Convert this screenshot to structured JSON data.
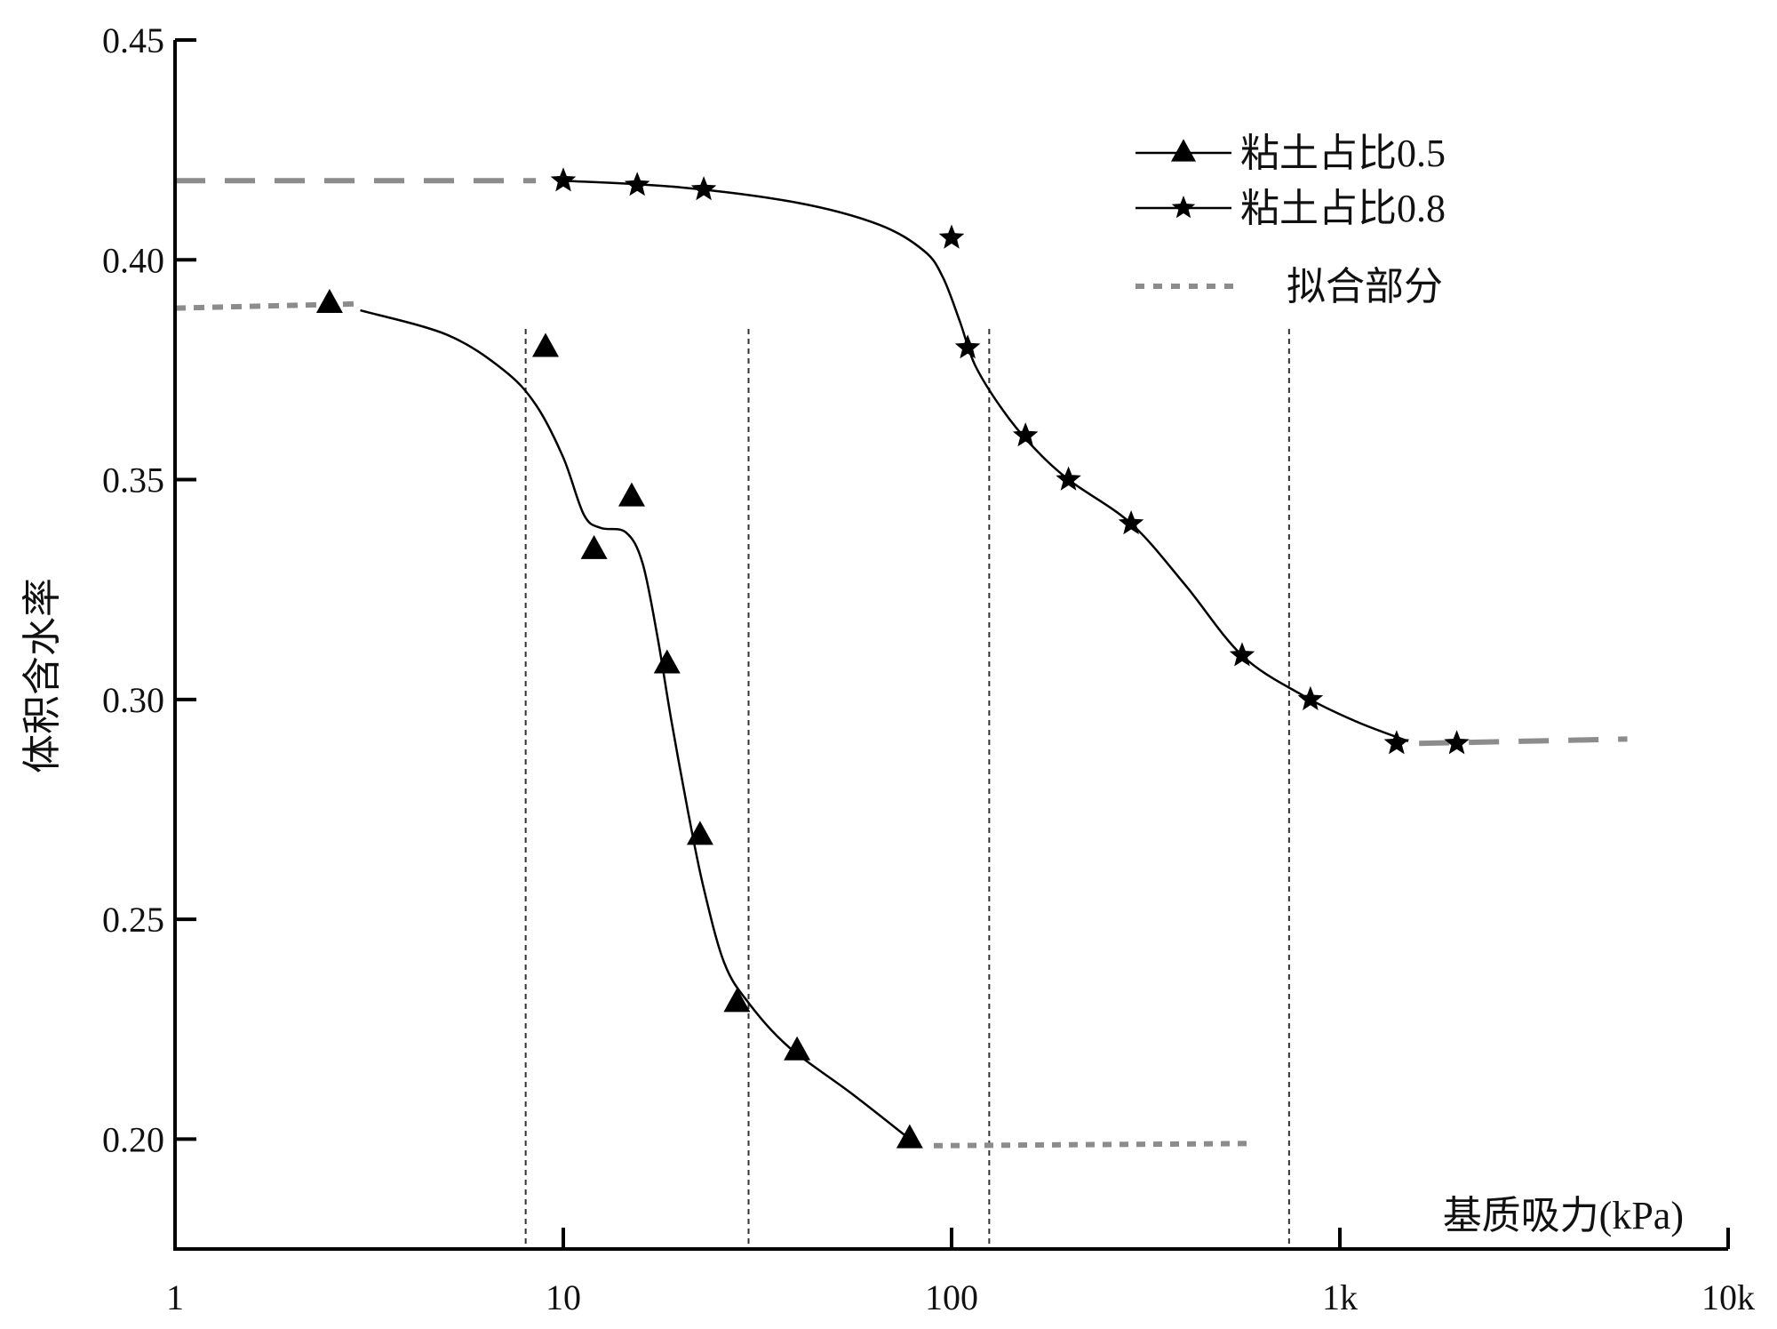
{
  "chart_data": {
    "type": "line",
    "xscale": "log",
    "xlim": [
      1,
      10000
    ],
    "ylim": [
      0.175,
      0.45
    ],
    "xlabel": "基质吸力(kPa)",
    "ylabel": "体积含水率",
    "x_ticks": [
      {
        "value": 1,
        "label": "1"
      },
      {
        "value": 10,
        "label": "10"
      },
      {
        "value": 100,
        "label": "100"
      },
      {
        "value": 1000,
        "label": "1k"
      },
      {
        "value": 10000,
        "label": "10k"
      }
    ],
    "y_ticks": [
      {
        "value": 0.2,
        "label": "0.20"
      },
      {
        "value": 0.25,
        "label": "0.25"
      },
      {
        "value": 0.3,
        "label": "0.30"
      },
      {
        "value": 0.35,
        "label": "0.35"
      },
      {
        "value": 0.4,
        "label": "0.40"
      },
      {
        "value": 0.45,
        "label": "0.45"
      }
    ],
    "series": [
      {
        "name": "粘土占比0.5",
        "marker": "triangle",
        "points": [
          {
            "x": 2.5,
            "y": 0.39
          },
          {
            "x": 9,
            "y": 0.38
          },
          {
            "x": 12,
            "y": 0.334
          },
          {
            "x": 15,
            "y": 0.346
          },
          {
            "x": 18.5,
            "y": 0.308
          },
          {
            "x": 22.5,
            "y": 0.269
          },
          {
            "x": 28,
            "y": 0.231
          },
          {
            "x": 40,
            "y": 0.22
          },
          {
            "x": 78,
            "y": 0.2
          }
        ],
        "fit_curve": [
          {
            "x": 3,
            "y": 0.3885
          },
          {
            "x": 5,
            "y": 0.383
          },
          {
            "x": 7,
            "y": 0.375
          },
          {
            "x": 8.5,
            "y": 0.367
          },
          {
            "x": 10,
            "y": 0.355
          },
          {
            "x": 11.3,
            "y": 0.342
          },
          {
            "x": 12.5,
            "y": 0.339
          },
          {
            "x": 14.5,
            "y": 0.338
          },
          {
            "x": 16,
            "y": 0.331
          },
          {
            "x": 17.5,
            "y": 0.314
          },
          {
            "x": 19,
            "y": 0.295
          },
          {
            "x": 21,
            "y": 0.274
          },
          {
            "x": 23,
            "y": 0.257
          },
          {
            "x": 26,
            "y": 0.24
          },
          {
            "x": 30,
            "y": 0.231
          },
          {
            "x": 38,
            "y": 0.221
          },
          {
            "x": 55,
            "y": 0.2105
          },
          {
            "x": 78,
            "y": 0.2
          }
        ],
        "extension_dashed": [
          {
            "x": 1,
            "y": 0.389
          },
          {
            "x": 3,
            "y": 0.39
          }
        ],
        "extension_dotted": [
          {
            "x": 90,
            "y": 0.1985
          },
          {
            "x": 600,
            "y": 0.199
          }
        ]
      },
      {
        "name": "粘土占比0.8",
        "marker": "star",
        "points": [
          {
            "x": 10,
            "y": 0.418
          },
          {
            "x": 15.5,
            "y": 0.417
          },
          {
            "x": 23,
            "y": 0.416
          },
          {
            "x": 100,
            "y": 0.405
          },
          {
            "x": 110,
            "y": 0.38
          },
          {
            "x": 155,
            "y": 0.36
          },
          {
            "x": 200,
            "y": 0.35
          },
          {
            "x": 290,
            "y": 0.34
          },
          {
            "x": 560,
            "y": 0.31
          },
          {
            "x": 840,
            "y": 0.3
          },
          {
            "x": 1400,
            "y": 0.29
          },
          {
            "x": 2000,
            "y": 0.29
          }
        ],
        "fit_curve": [
          {
            "x": 10,
            "y": 0.418
          },
          {
            "x": 20,
            "y": 0.4165
          },
          {
            "x": 40,
            "y": 0.413
          },
          {
            "x": 65,
            "y": 0.408
          },
          {
            "x": 85,
            "y": 0.402
          },
          {
            "x": 95,
            "y": 0.396
          },
          {
            "x": 105,
            "y": 0.386
          },
          {
            "x": 115,
            "y": 0.376
          },
          {
            "x": 135,
            "y": 0.366
          },
          {
            "x": 160,
            "y": 0.358
          },
          {
            "x": 200,
            "y": 0.35
          },
          {
            "x": 290,
            "y": 0.34
          },
          {
            "x": 400,
            "y": 0.326
          },
          {
            "x": 560,
            "y": 0.31
          },
          {
            "x": 800,
            "y": 0.301
          },
          {
            "x": 1100,
            "y": 0.295
          },
          {
            "x": 1500,
            "y": 0.2905
          }
        ],
        "extension_dashed": [
          {
            "x": 1,
            "y": 0.418
          },
          {
            "x": 8.5,
            "y": 0.418
          },
          {
            "x": 1600,
            "y": 0.29
          },
          {
            "x": 5500,
            "y": 0.291
          }
        ]
      }
    ],
    "vertical_guides": [
      8,
      30,
      125,
      740
    ],
    "legend": {
      "placement": "top-right",
      "entries": [
        {
          "label": "粘土占比0.5",
          "style": "line-triangle"
        },
        {
          "label": "粘土占比0.8",
          "style": "line-star"
        },
        {
          "label": "拟合部分",
          "style": "dotted"
        }
      ]
    },
    "colors": {
      "line": "#000000",
      "fit_extension": "#8c8c8c",
      "guide": "#333333"
    }
  }
}
